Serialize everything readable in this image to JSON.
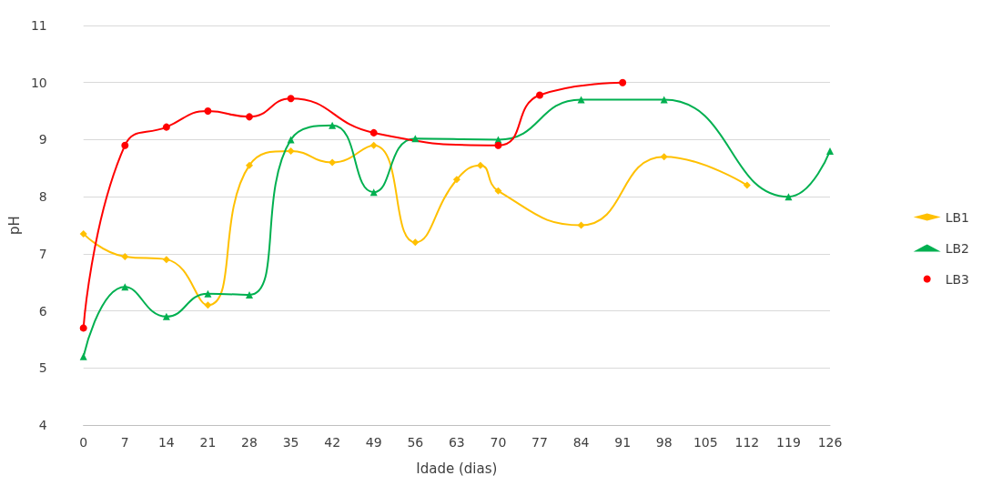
{
  "chart_data": {
    "type": "line",
    "xlabel": "Idade (dias)",
    "ylabel": "pH",
    "xlim": [
      0,
      126
    ],
    "xticks": [
      0,
      7,
      14,
      21,
      28,
      35,
      42,
      49,
      56,
      63,
      70,
      77,
      84,
      91,
      98,
      105,
      112,
      119,
      126
    ],
    "ylim": [
      4,
      11
    ],
    "yticks": [
      4,
      5,
      6,
      7,
      8,
      9,
      10,
      11
    ],
    "grid": "y",
    "legend": "right",
    "series": [
      {
        "name": "LB1",
        "color": "#ffc000",
        "marker": "diamond",
        "x": [
          0,
          7,
          14,
          21,
          28,
          35,
          42,
          49,
          56,
          63,
          67,
          70,
          84,
          98,
          112
        ],
        "values": [
          7.35,
          6.95,
          6.9,
          6.1,
          8.55,
          8.8,
          8.6,
          8.9,
          7.2,
          8.3,
          8.55,
          8.1,
          7.5,
          8.7,
          8.2
        ]
      },
      {
        "name": "LB2",
        "color": "#00b050",
        "marker": "triangle",
        "x": [
          0,
          7,
          14,
          21,
          28,
          35,
          42,
          49,
          56,
          70,
          84,
          98,
          119,
          126
        ],
        "values": [
          5.2,
          6.42,
          5.9,
          6.3,
          6.28,
          9.0,
          9.25,
          8.08,
          9.02,
          9.0,
          9.7,
          9.7,
          8.0,
          8.8
        ]
      },
      {
        "name": "LB3",
        "color": "#ff0000",
        "marker": "circle",
        "x": [
          0,
          7,
          14,
          21,
          28,
          35,
          49,
          70,
          77,
          91
        ],
        "values": [
          5.7,
          8.9,
          9.22,
          9.5,
          9.4,
          9.72,
          9.12,
          8.9,
          9.78,
          10.0
        ]
      }
    ]
  }
}
